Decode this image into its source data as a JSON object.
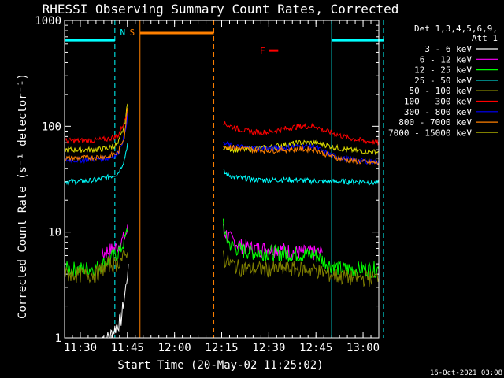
{
  "chart_data": {
    "type": "line",
    "title": "RHESSI Observing Summary Count Rates, Corrected",
    "xlabel": "Start Time (20-May-02 11:25:02)",
    "ylabel": "Corrected Count Rate (s⁻¹ detector⁻¹)",
    "yscale": "log",
    "ylim": [
      1,
      1000
    ],
    "xlim_minutes": [
      0,
      100
    ],
    "x_ticks": [
      {
        "label": "11:30",
        "min": 5
      },
      {
        "label": "11:45",
        "min": 20
      },
      {
        "label": "12:00",
        "min": 35
      },
      {
        "label": "12:15",
        "min": 50
      },
      {
        "label": "12:30",
        "min": 65
      },
      {
        "label": "12:45",
        "min": 80
      },
      {
        "label": "13:00",
        "min": 95
      }
    ],
    "y_ticks": [
      {
        "label": "1",
        "value": 1
      },
      {
        "label": "10",
        "value": 10
      },
      {
        "label": "100",
        "value": 100
      },
      {
        "label": "1000",
        "value": 1000
      }
    ],
    "legend": {
      "header": [
        "Det 1,3,4,5,6,9,",
        "Att 1"
      ],
      "placement": "right"
    },
    "series": [
      {
        "name": "3 - 6 keV",
        "color": "#ffffff",
        "x": [
          12,
          14,
          18,
          19.5,
          20.3
        ],
        "y": [
          1,
          1,
          1.5,
          3,
          5
        ]
      },
      {
        "name": "6 - 12 keV",
        "color": "#ff00ff",
        "x": [
          12,
          13,
          16,
          18,
          19.5,
          20.3,
          50.5,
          51,
          53,
          56,
          60,
          66,
          70,
          73,
          78,
          82
        ],
        "y": [
          6,
          6.5,
          7,
          8,
          9.5,
          11,
          12,
          10,
          8.5,
          7.5,
          7,
          7,
          6.8,
          6.5,
          6.4,
          6.4
        ]
      },
      {
        "name": "12 - 25 keV",
        "color": "#00ff00",
        "x": [
          0,
          5,
          10,
          12,
          14,
          16,
          18,
          19.5,
          20.3,
          50.5,
          51,
          53,
          56,
          60,
          66,
          70,
          75,
          80,
          84,
          88,
          92,
          100
        ],
        "y": [
          4.5,
          4.5,
          4.6,
          5,
          5.5,
          6,
          7,
          9,
          12,
          13,
          9,
          7.5,
          6.8,
          6.5,
          6.4,
          6.3,
          6.2,
          6.1,
          5,
          4.5,
          4.5,
          4.5
        ]
      },
      {
        "name": "25 - 50 keV",
        "color": "#00ffff",
        "x": [
          0,
          5,
          10,
          14,
          17,
          19,
          20.3,
          50.5,
          51,
          54,
          58,
          62,
          66,
          70,
          74,
          78,
          82,
          86,
          90,
          95,
          100
        ],
        "y": [
          30,
          30,
          31,
          33,
          36,
          48,
          75,
          38,
          36,
          33,
          32,
          31,
          31,
          31.5,
          31,
          30.5,
          30,
          30,
          30,
          30,
          29
        ]
      },
      {
        "name": "50 - 100 keV",
        "color": "#dddd00",
        "x": [
          0,
          5,
          10,
          14,
          17,
          19,
          20.3,
          50.5,
          51,
          55,
          60,
          65,
          70,
          75,
          80,
          82,
          86,
          90,
          95,
          100
        ],
        "y": [
          60,
          60,
          60,
          62,
          68,
          100,
          180,
          64,
          62,
          60,
          61,
          63,
          67,
          70,
          70,
          68,
          63,
          60,
          58,
          57
        ]
      },
      {
        "name": "100 - 300 keV",
        "color": "#ff0000",
        "x": [
          0,
          5,
          10,
          14,
          17,
          19,
          20.3,
          50.5,
          51,
          55,
          60,
          65,
          70,
          75,
          80,
          82,
          86,
          90,
          95,
          100
        ],
        "y": [
          73,
          73,
          74,
          76,
          82,
          110,
          150,
          112,
          105,
          95,
          88,
          88,
          95,
          100,
          100,
          93,
          85,
          78,
          73,
          70
        ]
      },
      {
        "name": "300 - 800 keV",
        "color": "#0000ff",
        "x": [
          0,
          5,
          10,
          14,
          17,
          19,
          20.3,
          50.5,
          51,
          55,
          60,
          65,
          70,
          75,
          80,
          82,
          86,
          90,
          95,
          100
        ],
        "y": [
          48,
          48,
          49,
          50,
          55,
          80,
          140,
          70,
          68,
          64,
          62,
          62,
          63,
          65,
          64,
          58,
          52,
          49,
          47,
          46
        ]
      },
      {
        "name": "800 - 7000 keV",
        "color": "#ff8000",
        "x": [
          0,
          5,
          10,
          14,
          17,
          19,
          20.3,
          50.5,
          51,
          55,
          60,
          65,
          70,
          75,
          80,
          82,
          86,
          90,
          95,
          100
        ],
        "y": [
          50,
          50,
          51,
          52,
          56,
          80,
          170,
          68,
          65,
          62,
          60,
          59,
          60,
          61,
          60,
          56,
          51,
          48,
          46,
          45
        ]
      },
      {
        "name": "7000 - 15000 keV",
        "color": "#808000",
        "x": [
          0,
          5,
          10,
          12,
          14,
          16,
          18,
          19.5,
          20.3,
          50.5,
          51,
          53,
          56,
          60,
          66,
          70,
          75,
          80,
          84,
          88,
          92,
          100
        ],
        "y": [
          4,
          4,
          4,
          4.5,
          5,
          5,
          5.5,
          6,
          8,
          6,
          5.5,
          5,
          4.6,
          4.5,
          4.5,
          4.5,
          4.5,
          4.4,
          4,
          3.8,
          3.7,
          3.7
        ]
      }
    ],
    "annotations": [
      {
        "label": "N",
        "color": "#00ffff",
        "x_label": 18.5
      },
      {
        "label": "S",
        "color": "#ff8000",
        "x_label": 21.5
      },
      {
        "label": "F",
        "color": "#ff0000",
        "x_label": 63
      }
    ],
    "flag_lines": [
      {
        "color": "#00ffff",
        "style": "dashed",
        "min": 16
      },
      {
        "color": "#00ffff",
        "style": "dashed",
        "min": 101.5
      },
      {
        "color": "#00ffff",
        "style": "solid",
        "min": 85
      },
      {
        "color": "#ff8000",
        "style": "solid",
        "min": 24
      },
      {
        "color": "#ff8000",
        "style": "dashed",
        "min": 47.5
      }
    ],
    "flag_bars": [
      {
        "color": "#00ffff",
        "from": 0,
        "to": 16,
        "value": 650
      },
      {
        "color": "#00ffff",
        "from": 85,
        "to": 101.5,
        "value": 650
      },
      {
        "color": "#ff8000",
        "from": 24,
        "to": 47.5,
        "value": 760
      },
      {
        "color": "#ff0000",
        "from": 65,
        "to": 68,
        "value": 520
      }
    ],
    "footer": "16-Oct-2021 03:08"
  }
}
